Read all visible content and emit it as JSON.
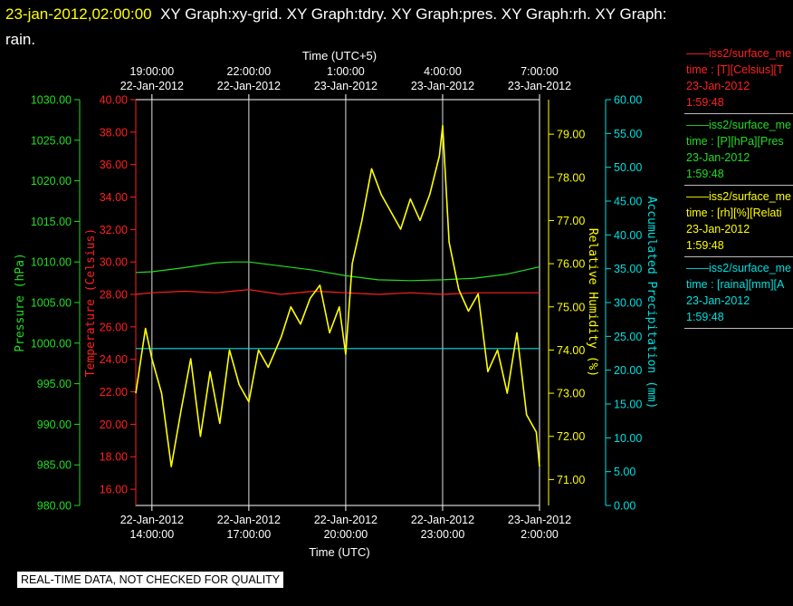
{
  "header": {
    "timestamp": "23-jan-2012,02:00:00",
    "graphs": "XY Graph:xy-grid.  XY Graph:tdry.  XY Graph:pres.  XY Graph:rh.  XY Graph:",
    "graphs_cont": "rain."
  },
  "legend": [
    {
      "line1": "iss2/surface_me",
      "line2": "time : [T][Celsius][T",
      "line3": "23-Jan-2012",
      "line4": "1:59:48",
      "color": "#ff2020"
    },
    {
      "line1": "iss2/surface_me",
      "line2": "time : [P][hPa][Pres",
      "line3": "23-Jan-2012",
      "line4": "1:59:48",
      "color": "#22dd22"
    },
    {
      "line1": "iss2/surface_me",
      "line2": "time : [rh][%][Relati",
      "line3": "23-Jan-2012",
      "line4": "1:59:48",
      "color": "#ffff00"
    },
    {
      "line1": "iss2/surface_me",
      "line2": "time : [raina][mm][A",
      "line3": "23-Jan-2012",
      "line4": "1:59:48",
      "color": "#00e0e0"
    }
  ],
  "banner": "REAL-TIME DATA, NOT CHECKED FOR QUALITY",
  "chart_data": {
    "type": "line",
    "grid": "vertical lines at top-axis ticks",
    "x_bottom": {
      "label": "Time (UTC)",
      "range_hours": [
        13.5,
        26.0
      ],
      "ticks": [
        {
          "h": 14,
          "date": "22-Jan-2012",
          "time": "14:00:00"
        },
        {
          "h": 17,
          "date": "22-Jan-2012",
          "time": "17:00:00"
        },
        {
          "h": 20,
          "date": "22-Jan-2012",
          "time": "20:00:00"
        },
        {
          "h": 23,
          "date": "22-Jan-2012",
          "time": "23:00:00"
        },
        {
          "h": 26,
          "date": "23-Jan-2012",
          "time": "2:00:00"
        }
      ]
    },
    "x_top": {
      "label": "Time (UTC+5)",
      "ticks": [
        {
          "h": 14,
          "time": "19:00:00",
          "date": "22-Jan-2012"
        },
        {
          "h": 17,
          "time": "22:00:00",
          "date": "22-Jan-2012"
        },
        {
          "h": 20,
          "time": "1:00:00",
          "date": "23-Jan-2012"
        },
        {
          "h": 23,
          "time": "4:00:00",
          "date": "23-Jan-2012"
        },
        {
          "h": 26,
          "time": "7:00:00",
          "date": "23-Jan-2012"
        }
      ]
    },
    "axes": {
      "pressure": {
        "label": "Pressure (hPa)",
        "range": [
          980,
          1030
        ],
        "color": "#22dd22",
        "ticks": [
          "980.00",
          "985.00",
          "990.00",
          "995.00",
          "1000.00",
          "1005.00",
          "1010.00",
          "1015.00",
          "1020.00",
          "1025.00",
          "1030.00"
        ]
      },
      "temperature": {
        "label": "Temperature (Celsius)",
        "range": [
          15,
          40
        ],
        "color": "#ff2020",
        "ticks": [
          "16.00",
          "18.00",
          "20.00",
          "22.00",
          "24.00",
          "26.00",
          "28.00",
          "30.00",
          "32.00",
          "34.00",
          "36.00",
          "38.00",
          "40.00"
        ]
      },
      "rh": {
        "label": "Relative Humidity (%)",
        "range": [
          70.4,
          79.8
        ],
        "color": "#ffff00",
        "ticks": [
          "71.00",
          "72.00",
          "73.00",
          "74.00",
          "75.00",
          "76.00",
          "77.00",
          "78.00",
          "79.00"
        ]
      },
      "precip": {
        "label": "Accumulated Precipitation (mm)",
        "range": [
          0,
          60
        ],
        "color": "#00e0e0",
        "ticks": [
          "0.00",
          "5.00",
          "10.00",
          "15.00",
          "20.00",
          "25.00",
          "30.00",
          "35.00",
          "40.00",
          "45.00",
          "50.00",
          "55.00",
          "60.00"
        ]
      }
    },
    "series": [
      {
        "name": "Temperature",
        "axis": "temperature",
        "x": [
          13.5,
          14,
          15,
          16,
          17,
          18,
          19,
          20,
          21,
          22,
          23,
          24,
          25,
          26.0
        ],
        "y": [
          28.0,
          28.1,
          28.2,
          28.1,
          28.3,
          28.0,
          28.2,
          28.1,
          28.0,
          28.1,
          28.0,
          28.1,
          28.1,
          28.1
        ]
      },
      {
        "name": "Pressure",
        "axis": "pressure",
        "x": [
          13.5,
          14,
          15,
          16,
          16.5,
          17,
          18,
          19,
          20,
          21,
          22,
          23,
          24,
          25,
          26.0
        ],
        "y": [
          1008.7,
          1008.8,
          1009.3,
          1009.9,
          1010.0,
          1010.0,
          1009.5,
          1009.0,
          1008.3,
          1007.8,
          1007.7,
          1007.8,
          1008.0,
          1008.5,
          1009.4
        ]
      },
      {
        "name": "Precipitation",
        "axis": "precip",
        "x": [
          13.5,
          26.0
        ],
        "y": [
          23.2,
          23.2
        ]
      },
      {
        "name": "Relative Humidity",
        "axis": "rh",
        "x": [
          13.5,
          13.8,
          14.0,
          14.3,
          14.6,
          14.9,
          15.2,
          15.5,
          15.8,
          16.1,
          16.4,
          16.7,
          17.0,
          17.3,
          17.6,
          18.0,
          18.3,
          18.6,
          18.9,
          19.2,
          19.5,
          19.8,
          20.0,
          20.2,
          20.5,
          20.8,
          21.1,
          21.4,
          21.7,
          22.0,
          22.3,
          22.6,
          22.9,
          23.0,
          23.2,
          23.5,
          23.8,
          24.1,
          24.4,
          24.7,
          25.0,
          25.3,
          25.6,
          25.9,
          26.0
        ],
        "y": [
          73.0,
          74.5,
          73.8,
          73.0,
          71.3,
          72.6,
          73.8,
          72.0,
          73.5,
          72.3,
          74.0,
          73.2,
          72.8,
          74.0,
          73.6,
          74.3,
          75.0,
          74.6,
          75.2,
          75.5,
          74.4,
          75.0,
          73.9,
          76.0,
          77.0,
          78.2,
          77.6,
          77.2,
          76.8,
          77.5,
          77.0,
          77.6,
          78.5,
          79.2,
          76.5,
          75.4,
          74.9,
          75.3,
          73.5,
          74.0,
          73.0,
          74.4,
          72.5,
          72.1,
          71.3
        ]
      }
    ]
  }
}
